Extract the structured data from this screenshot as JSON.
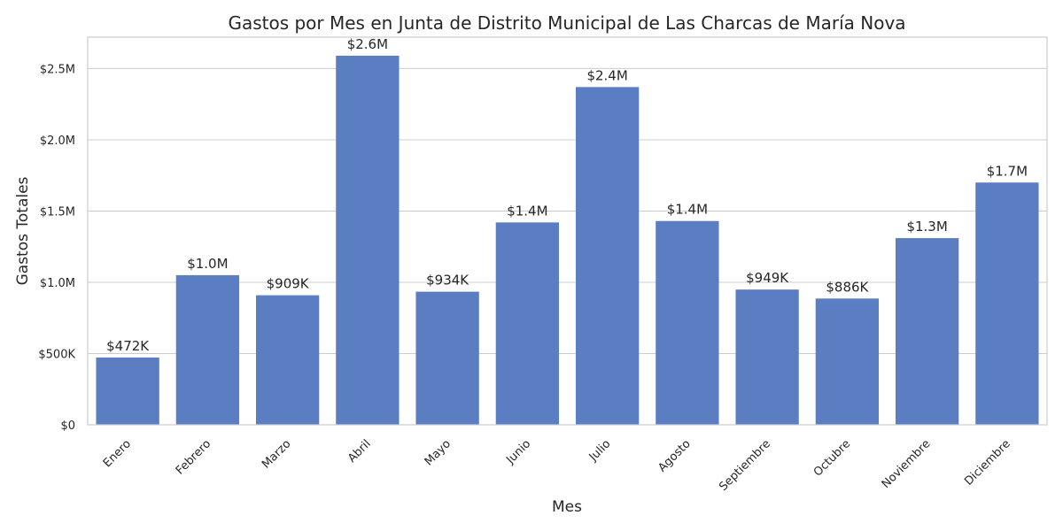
{
  "chart_data": {
    "type": "bar",
    "title": "Gastos por Mes en Junta de Distrito Municipal de Las Charcas de María Nova",
    "xlabel": "Mes",
    "ylabel": "Gastos Totales",
    "categories": [
      "Enero",
      "Febrero",
      "Marzo",
      "Abril",
      "Mayo",
      "Junio",
      "Julio",
      "Agosto",
      "Septiembre",
      "Octubre",
      "Noviembre",
      "Diciembre"
    ],
    "values": [
      472000,
      1050000,
      909000,
      2590000,
      934000,
      1420000,
      2370000,
      1430000,
      949000,
      886000,
      1310000,
      1700000
    ],
    "data_labels": [
      "$472K",
      "$1.0M",
      "$909K",
      "$2.6M",
      "$934K",
      "$1.4M",
      "$2.4M",
      "$1.4M",
      "$949K",
      "$886K",
      "$1.3M",
      "$1.7M"
    ],
    "ylim": [
      0,
      2720000
    ],
    "yticks": [
      0,
      500000,
      1000000,
      1500000,
      2000000,
      2500000
    ],
    "ytick_labels": [
      "$0",
      "$500K",
      "$1.0M",
      "$1.5M",
      "$2.0M",
      "$2.5M"
    ],
    "grid": true,
    "bar_color": "#5b7ec2",
    "grid_color": "#cccccc"
  }
}
